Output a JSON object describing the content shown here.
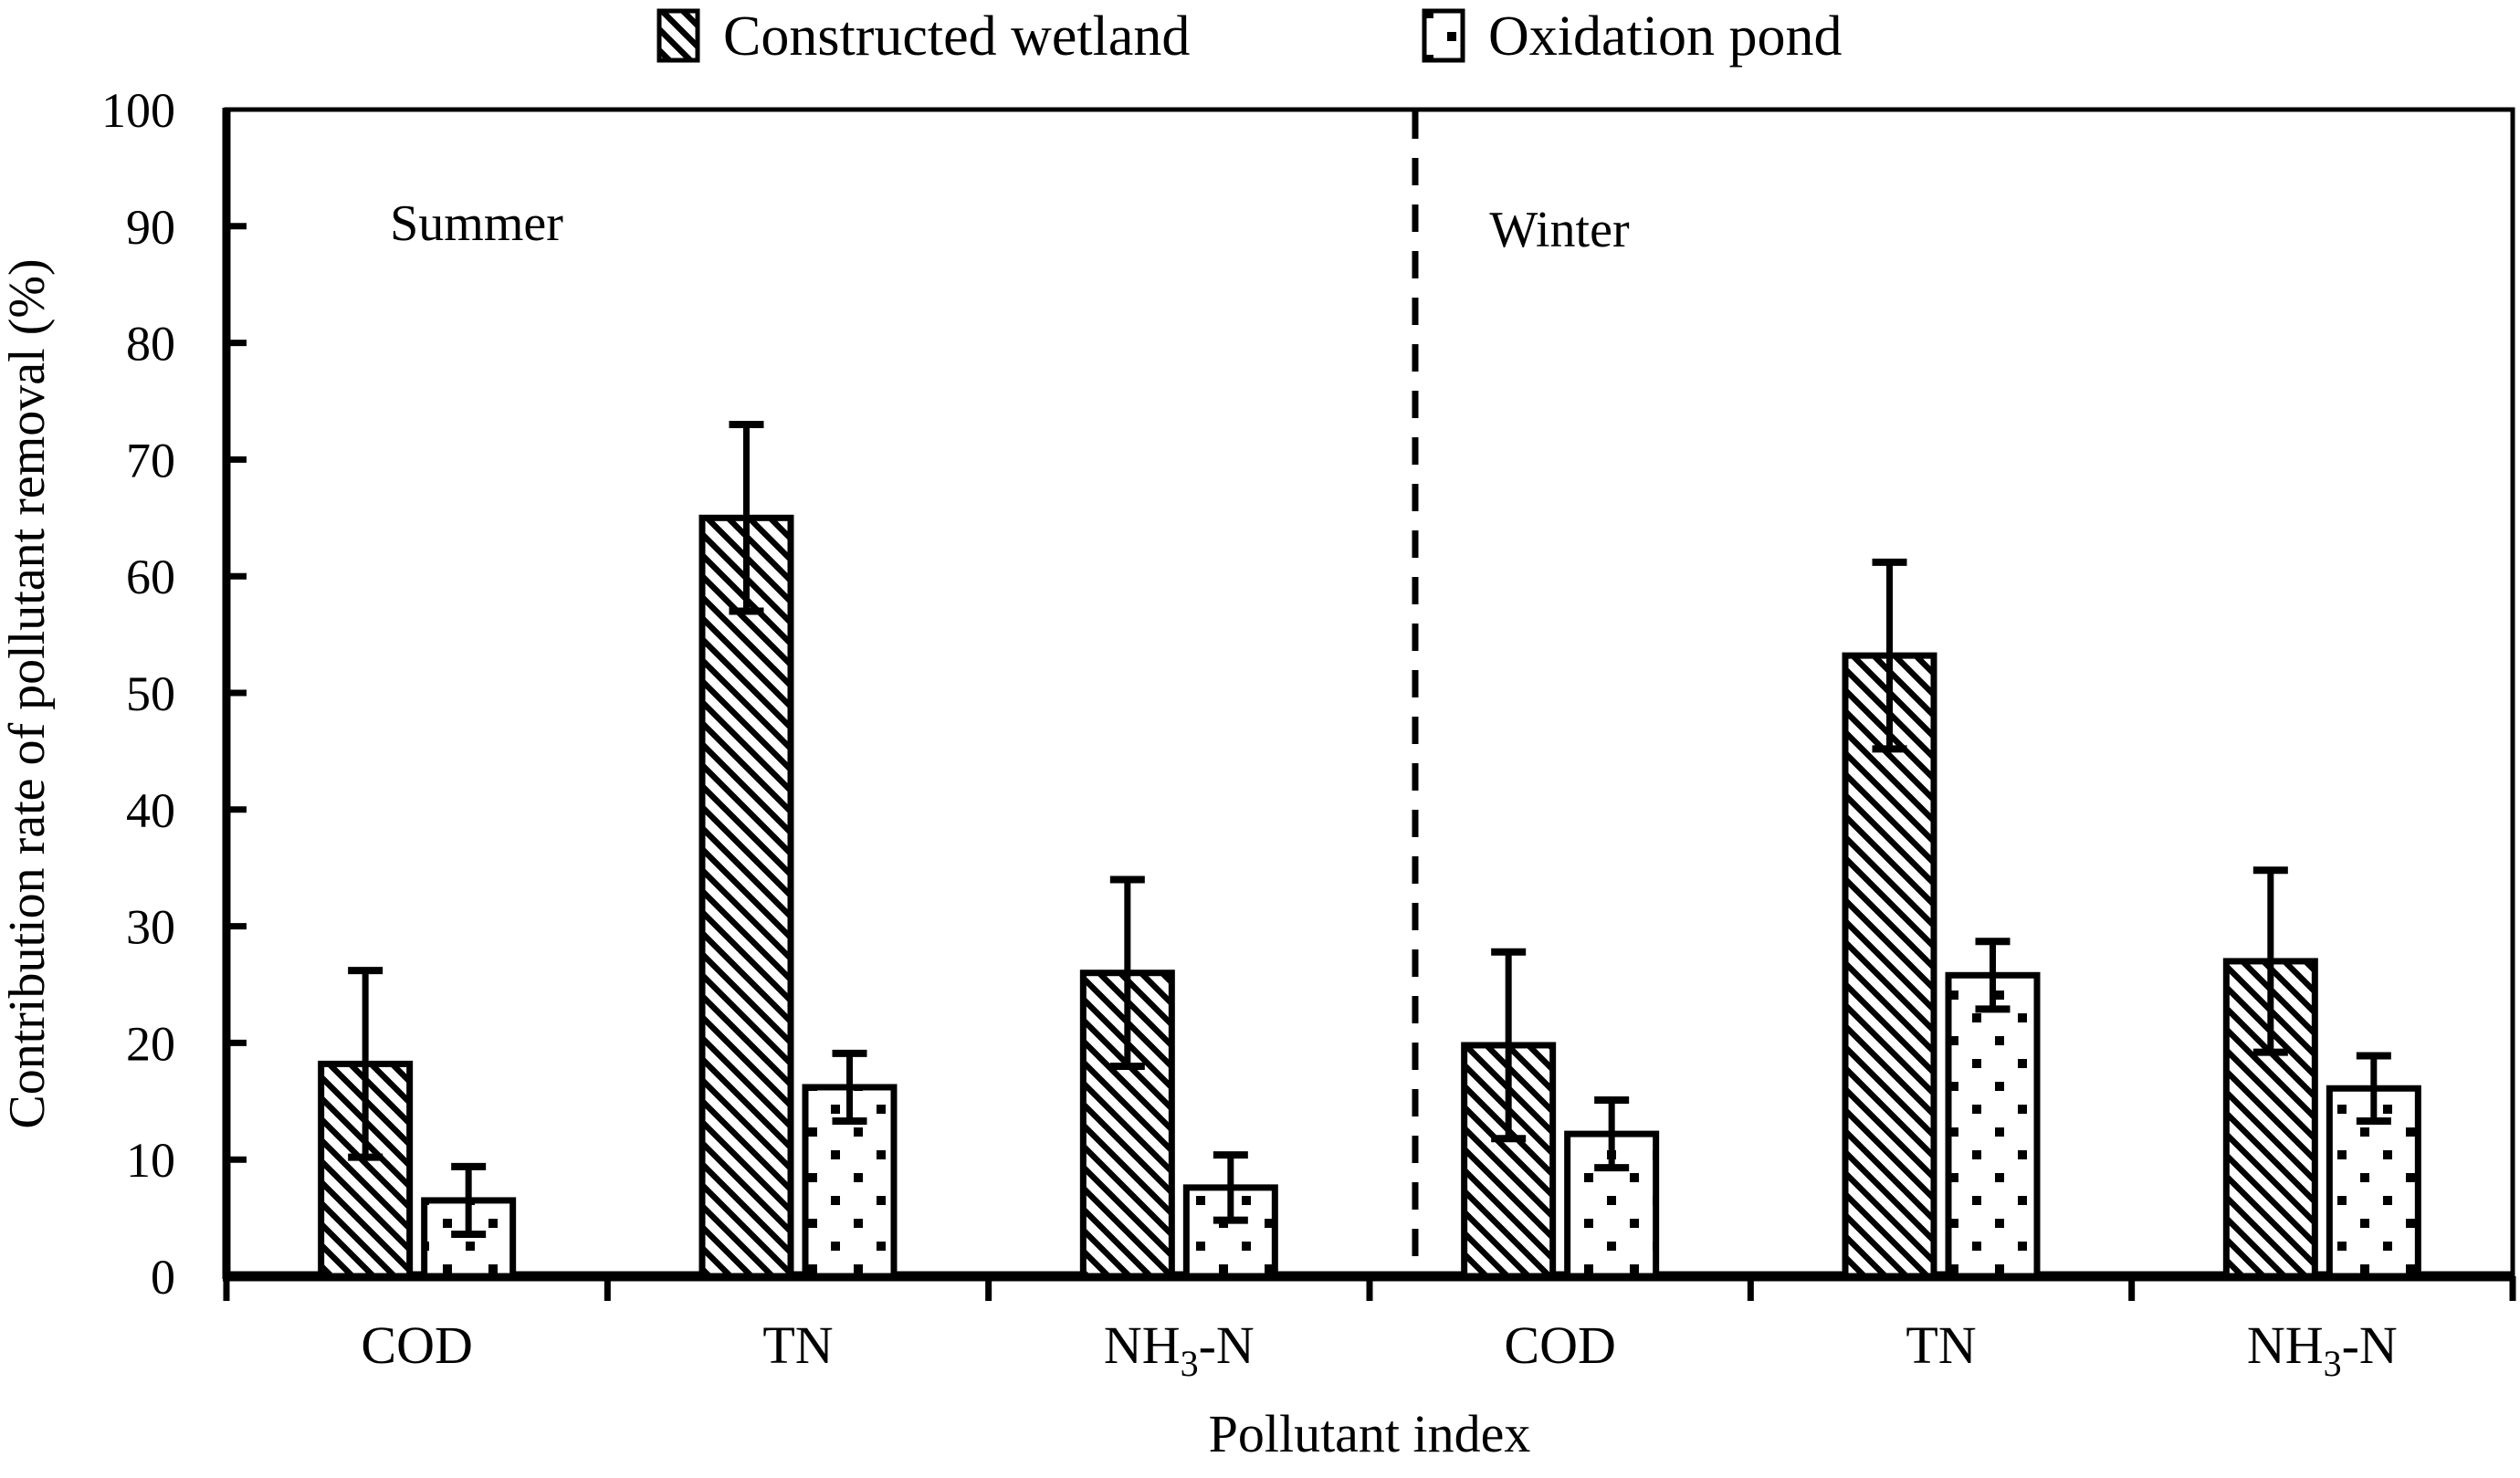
{
  "chart_data": {
    "type": "bar",
    "title": "",
    "xlabel": "Pollutant index",
    "ylabel": "Contribution rate of pollutant removal (%)",
    "ylim": [
      0,
      100
    ],
    "y_ticks": [
      0,
      10,
      20,
      30,
      40,
      50,
      60,
      70,
      80,
      90,
      100
    ],
    "grid": false,
    "legend_position": "top",
    "plot_frame": true,
    "sections": [
      {
        "label": "Summer"
      },
      {
        "label": "Winter"
      }
    ],
    "divider": {
      "style": "dashed-vertical-line",
      "between_sections": true
    },
    "categories": [
      "COD",
      "TN",
      "NH₃-N",
      "COD",
      "TN",
      "NH₃-N"
    ],
    "series": [
      {
        "name": "Constructed wetland",
        "pattern": "diagonal-hatch",
        "values": [
          18.2,
          65.0,
          26.0,
          19.8,
          53.2,
          27.0
        ],
        "errors": [
          8.0,
          8.0,
          8.0,
          8.0,
          8.0,
          7.8
        ]
      },
      {
        "name": "Oxidation pond",
        "pattern": "dots",
        "values": [
          6.5,
          16.2,
          7.6,
          12.2,
          25.8,
          16.1
        ],
        "errors": [
          2.9,
          2.9,
          2.8,
          2.9,
          2.9,
          2.8
        ]
      }
    ],
    "colors": {
      "ink": "#000000",
      "background": "#ffffff"
    }
  }
}
